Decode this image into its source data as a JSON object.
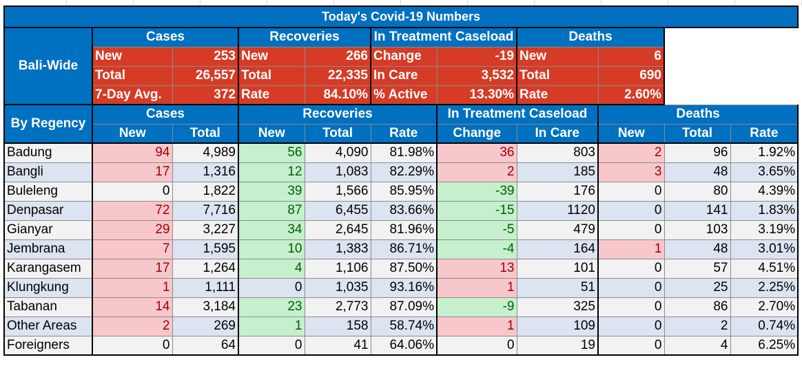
{
  "title": "Today's Covid-19 Numbers",
  "bali_wide": {
    "label": "Bali-Wide",
    "groups": [
      "Cases",
      "Recoveries",
      "In Treatment Caseload",
      "Deaths"
    ],
    "rows": [
      {
        "cases_label": "New",
        "cases_value": "253",
        "rec_label": "New",
        "rec_value": "266",
        "treat_label": "Change",
        "treat_value": "-19",
        "deaths_label": "New",
        "deaths_value": "6"
      },
      {
        "cases_label": "Total",
        "cases_value": "26,557",
        "rec_label": "Total",
        "rec_value": "22,335",
        "treat_label": "In Care",
        "treat_value": "3,532",
        "deaths_label": "Total",
        "deaths_value": "690"
      },
      {
        "cases_label": "7-Day Avg.",
        "cases_value": "372",
        "rec_label": "Rate",
        "rec_value": "84.10%",
        "treat_label": "% Active",
        "treat_value": "13.30%",
        "deaths_label": "Rate",
        "deaths_value": "2.60%"
      }
    ]
  },
  "by_regency": {
    "label": "By Regency",
    "groups": [
      "Cases",
      "Recoveries",
      "In Treatment Caseload",
      "Deaths"
    ],
    "columns": [
      "New",
      "Total",
      "New",
      "Total",
      "Rate",
      "Change",
      "In Care",
      "New",
      "Total",
      "Rate"
    ],
    "rows": [
      {
        "name": "Badung",
        "cells": [
          "94",
          "4,989",
          "56",
          "4,090",
          "81.98%",
          "36",
          "803",
          "2",
          "96",
          "1.92%"
        ],
        "styles": [
          "pos",
          "",
          "good",
          "",
          "",
          "pos",
          "",
          "pos",
          "",
          ""
        ]
      },
      {
        "name": "Bangli",
        "cells": [
          "17",
          "1,316",
          "12",
          "1,083",
          "82.29%",
          "2",
          "185",
          "3",
          "48",
          "3.65%"
        ],
        "styles": [
          "pos",
          "",
          "good",
          "",
          "",
          "pos",
          "",
          "pos",
          "",
          ""
        ]
      },
      {
        "name": "Buleleng",
        "cells": [
          "0",
          "1,822",
          "39",
          "1,566",
          "85.95%",
          "-39",
          "176",
          "0",
          "80",
          "4.39%"
        ],
        "styles": [
          "",
          "",
          "good",
          "",
          "",
          "good",
          "",
          "",
          "",
          ""
        ]
      },
      {
        "name": "Denpasar",
        "cells": [
          "72",
          "7,716",
          "87",
          "6,455",
          "83.66%",
          "-15",
          "1120",
          "0",
          "141",
          "1.83%"
        ],
        "styles": [
          "pos",
          "",
          "good",
          "",
          "",
          "good",
          "",
          "",
          "",
          ""
        ]
      },
      {
        "name": "Gianyar",
        "cells": [
          "29",
          "3,227",
          "34",
          "2,645",
          "81.96%",
          "-5",
          "479",
          "0",
          "103",
          "3.19%"
        ],
        "styles": [
          "pos",
          "",
          "good",
          "",
          "",
          "good",
          "",
          "",
          "",
          ""
        ]
      },
      {
        "name": "Jembrana",
        "cells": [
          "7",
          "1,595",
          "10",
          "1,383",
          "86.71%",
          "-4",
          "164",
          "1",
          "48",
          "3.01%"
        ],
        "styles": [
          "pos",
          "",
          "good",
          "",
          "",
          "good",
          "",
          "pos",
          "",
          ""
        ]
      },
      {
        "name": "Karangasem",
        "cells": [
          "17",
          "1,264",
          "4",
          "1,106",
          "87.50%",
          "13",
          "101",
          "0",
          "57",
          "4.51%"
        ],
        "styles": [
          "pos",
          "",
          "good",
          "",
          "",
          "pos",
          "",
          "",
          "",
          ""
        ]
      },
      {
        "name": "Klungkung",
        "cells": [
          "1",
          "1,111",
          "0",
          "1,035",
          "93.16%",
          "1",
          "51",
          "0",
          "25",
          "2.25%"
        ],
        "styles": [
          "pos",
          "",
          "",
          "",
          "",
          "pos",
          "",
          "",
          "",
          ""
        ]
      },
      {
        "name": "Tabanan",
        "cells": [
          "14",
          "3,184",
          "23",
          "2,773",
          "87.09%",
          "-9",
          "325",
          "0",
          "86",
          "2.70%"
        ],
        "styles": [
          "pos",
          "",
          "good",
          "",
          "",
          "good",
          "",
          "",
          "",
          ""
        ]
      },
      {
        "name": "Other Areas",
        "cells": [
          "2",
          "269",
          "1",
          "158",
          "58.74%",
          "1",
          "109",
          "0",
          "2",
          "0.74%"
        ],
        "styles": [
          "pos",
          "",
          "good",
          "",
          "",
          "pos",
          "",
          "",
          "",
          ""
        ]
      },
      {
        "name": "Foreigners",
        "cells": [
          "0",
          "64",
          "0",
          "41",
          "64.06%",
          "0",
          "19",
          "0",
          "4",
          "6.25%"
        ],
        "styles": [
          "",
          "",
          "",
          "",
          "",
          "",
          "",
          "",
          "",
          ""
        ]
      }
    ]
  }
}
